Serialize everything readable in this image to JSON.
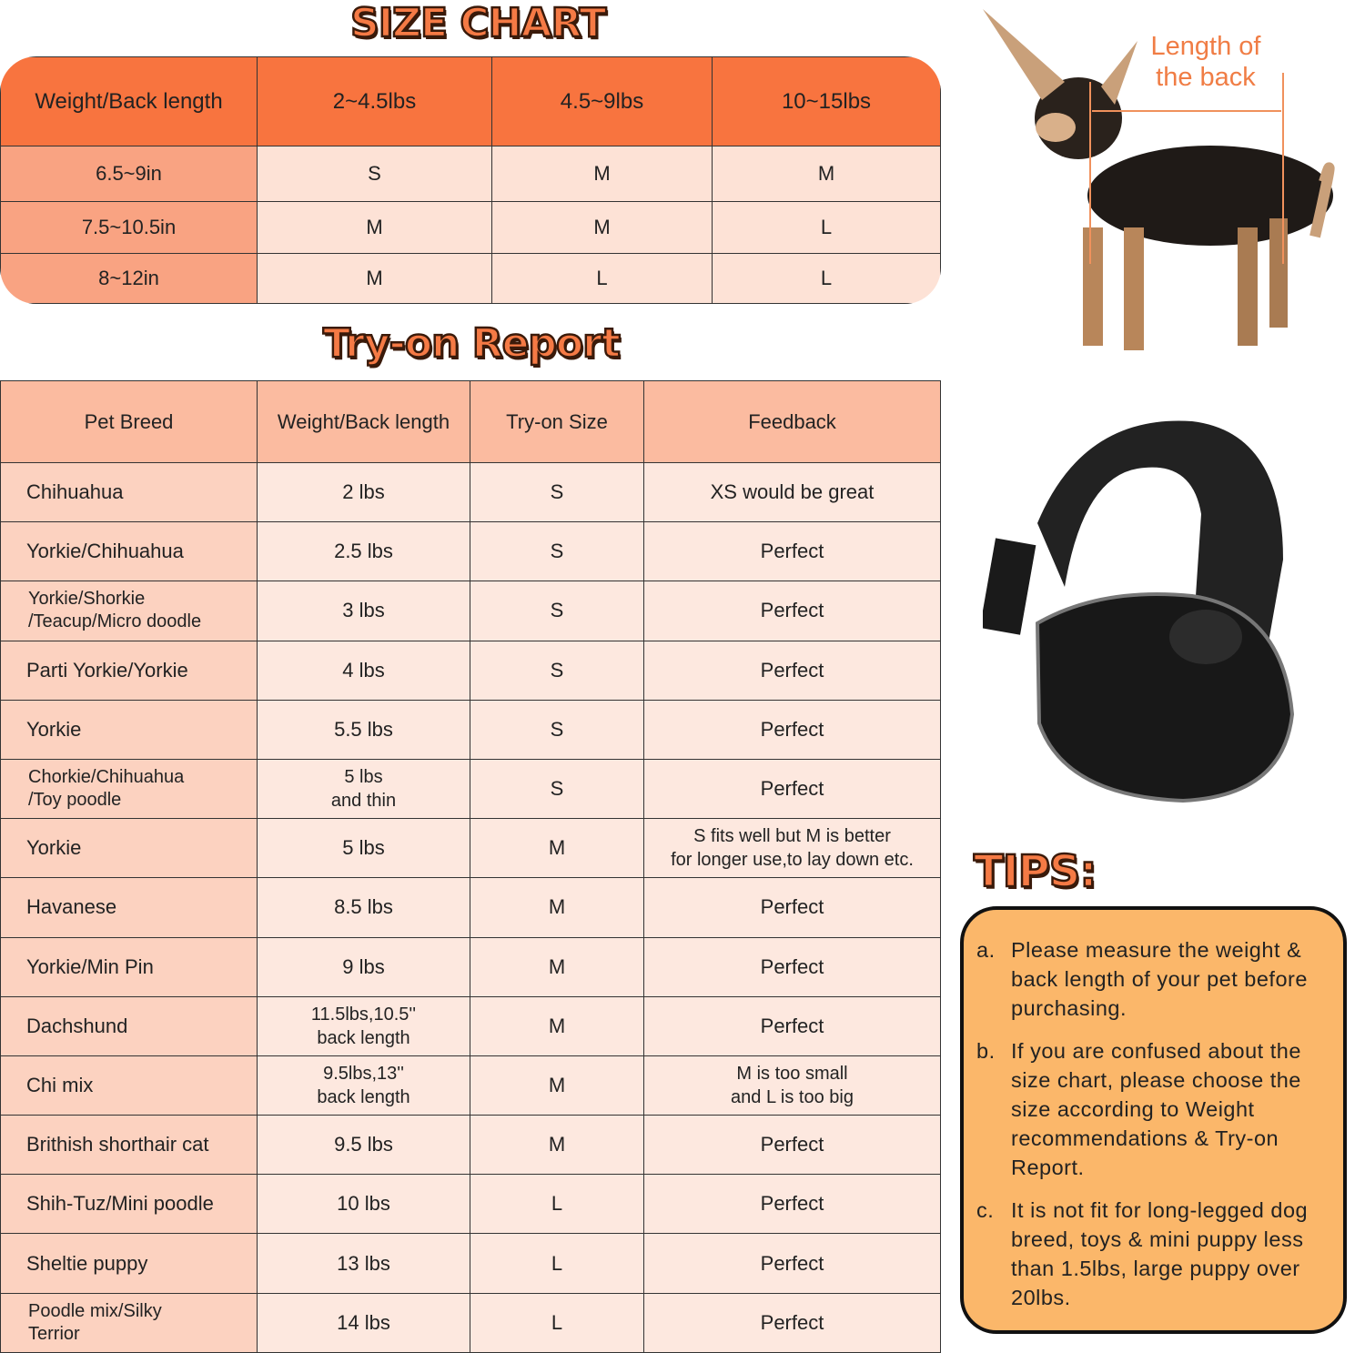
{
  "size_chart": {
    "title": "SIZE CHART",
    "header": [
      "Weight/Back length",
      "2~4.5lbs",
      "4.5~9lbs",
      "10~15lbs"
    ],
    "rows": [
      [
        "6.5~9in",
        "S",
        "M",
        "M"
      ],
      [
        "7.5~10.5in",
        "M",
        "M",
        "L"
      ],
      [
        "8~12in",
        "M",
        "L",
        "L"
      ]
    ]
  },
  "try_on": {
    "title": "Try-on Report",
    "header": [
      "Pet Breed",
      "Weight/Back length",
      "Try-on Size",
      "Feedback"
    ],
    "rows": [
      [
        "Chihuahua",
        "2 lbs",
        "S",
        "XS would be great"
      ],
      [
        "Yorkie/Chihuahua",
        "2.5 lbs",
        "S",
        "Perfect"
      ],
      [
        "Yorkie/Shorkie\n/Teacup/Micro doodle",
        "3 lbs",
        "S",
        "Perfect"
      ],
      [
        "Parti Yorkie/Yorkie",
        "4 lbs",
        "S",
        "Perfect"
      ],
      [
        "Yorkie",
        "5.5 lbs",
        "S",
        "Perfect"
      ],
      [
        "Chorkie/Chihuahua\n/Toy poodle",
        "5 lbs\nand thin",
        "S",
        "Perfect"
      ],
      [
        "Yorkie",
        "5 lbs",
        "M",
        "S fits well but M is better\nfor longer use,to lay down etc."
      ],
      [
        "Havanese",
        "8.5 lbs",
        "M",
        "Perfect"
      ],
      [
        "Yorkie/Min Pin",
        "9 lbs",
        "M",
        "Perfect"
      ],
      [
        "Dachshund",
        "11.5lbs,10.5''\nback length",
        "M",
        "Perfect"
      ],
      [
        "Chi mix",
        "9.5lbs,13''\nback length",
        "M",
        "M is too small\nand L is too big"
      ],
      [
        "Brithish shorthair cat",
        "9.5 lbs",
        "M",
        "Perfect"
      ],
      [
        "Shih-Tuz/Mini poodle",
        "10 lbs",
        "L",
        "Perfect"
      ],
      [
        "Sheltie puppy",
        "13 lbs",
        "L",
        "Perfect"
      ],
      [
        "Poodle mix/Silky\n Terrior",
        "14 lbs",
        "L",
        "Perfect"
      ]
    ]
  },
  "dog_label": "Length of\nthe back",
  "tips": {
    "title": "TIPS",
    "items": [
      {
        "letter": "a.",
        "text": "Please measure the weight & back length of your pet before purchasing."
      },
      {
        "letter": "b.",
        "text": "If you are confused about the size chart, please choose the size according to Weight recommendations & Try-on Report."
      },
      {
        "letter": "c.",
        "text": "It is not fit for long-legged dog breed, toys & mini puppy less than 1.5lbs, large puppy over 20lbs."
      }
    ]
  },
  "colors": {
    "accent": "#f8743f",
    "header2": "#fbbba0",
    "tips_bg": "#fbb76a"
  }
}
